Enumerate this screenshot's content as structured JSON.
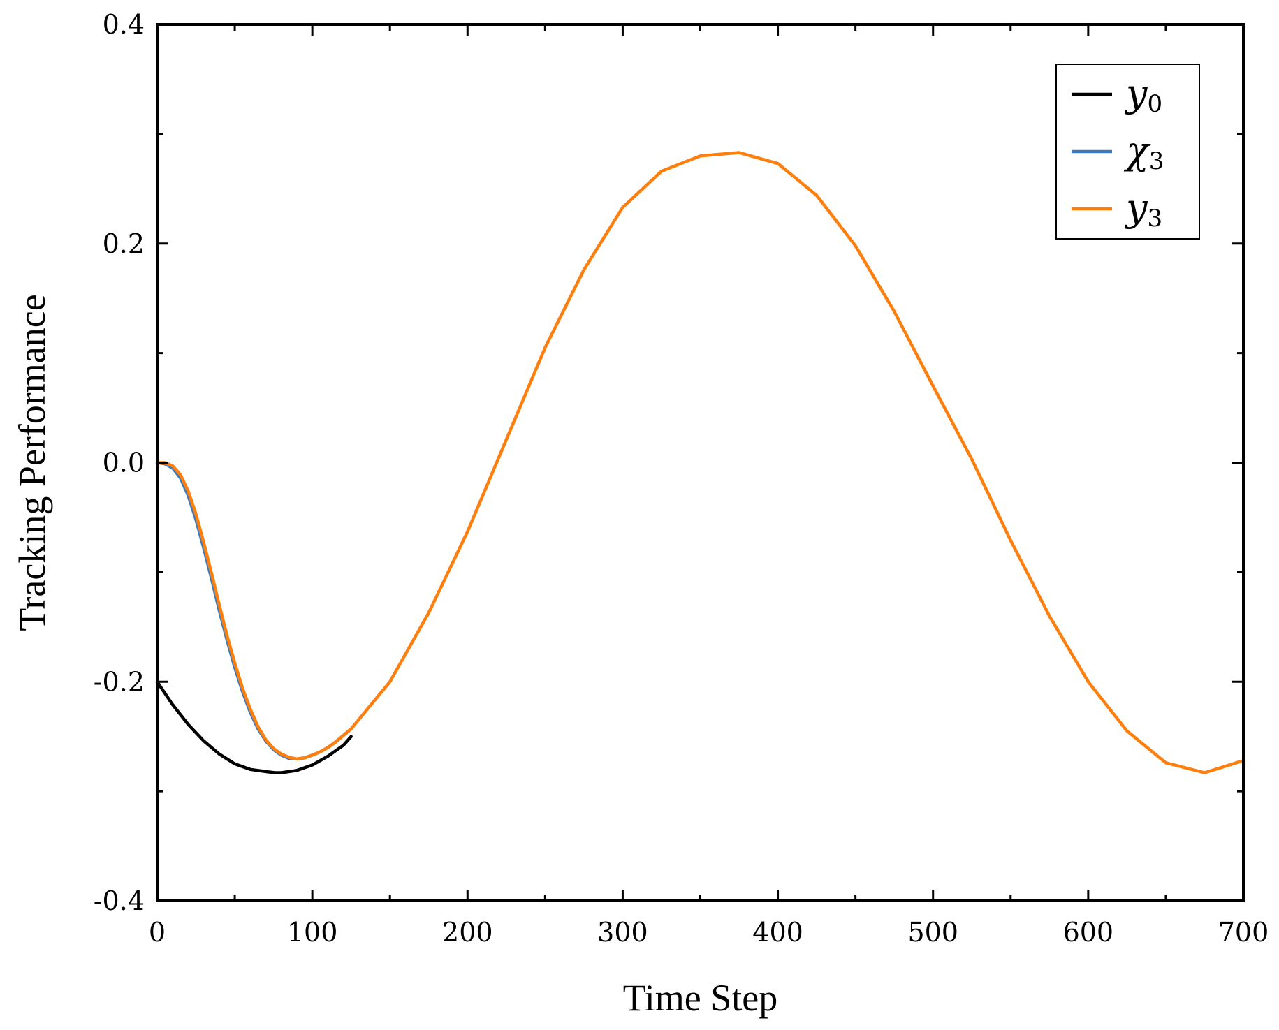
{
  "chart_data": {
    "type": "line",
    "title": "",
    "xlabel": "Time Step",
    "ylabel": "Tracking Performance",
    "xlim": [
      0,
      700
    ],
    "ylim": [
      -0.4,
      0.4
    ],
    "xticks": [
      0,
      100,
      200,
      300,
      400,
      500,
      600,
      700
    ],
    "xtick_labels": [
      "0",
      "100",
      "200",
      "300",
      "400",
      "500",
      "600",
      "700"
    ],
    "yticks": [
      -0.4,
      -0.2,
      0.0,
      0.2,
      0.4
    ],
    "ytick_labels": [
      "-0.4",
      "-0.2",
      "0.0",
      "0.2",
      "0.4"
    ],
    "grid": false,
    "legend": "top-right",
    "series": [
      {
        "name": "y0",
        "legend_main": "y",
        "legend_sub": "0",
        "color": "#000000",
        "x": [
          0,
          10,
          20,
          30,
          40,
          50,
          60,
          70,
          76,
          80,
          90,
          100,
          110,
          120,
          125
        ],
        "y": [
          -0.2,
          -0.221,
          -0.239,
          -0.254,
          -0.266,
          -0.275,
          -0.28,
          -0.282,
          -0.283,
          -0.283,
          -0.281,
          -0.276,
          -0.268,
          -0.258,
          -0.25
        ]
      },
      {
        "name": "χ3",
        "legend_main": "χ",
        "legend_sub": "3",
        "color": "#3a7bbf",
        "x": [
          0,
          5,
          10,
          15,
          20,
          25,
          30,
          35,
          40,
          45,
          50,
          55,
          60,
          65,
          70,
          75,
          80,
          85,
          90,
          95,
          100,
          105,
          110,
          115,
          120,
          125
        ],
        "y": [
          0.0,
          -0.001,
          -0.005,
          -0.014,
          -0.03,
          -0.052,
          -0.078,
          -0.106,
          -0.135,
          -0.162,
          -0.187,
          -0.209,
          -0.228,
          -0.243,
          -0.254,
          -0.262,
          -0.267,
          -0.27,
          -0.2705,
          -0.2695,
          -0.267,
          -0.264,
          -0.26,
          -0.255,
          -0.249,
          -0.243
        ]
      },
      {
        "name": "y3",
        "legend_main": "y",
        "legend_sub": "3",
        "color": "#ff7f0e",
        "x": [
          0,
          5,
          10,
          15,
          20,
          25,
          30,
          35,
          40,
          45,
          50,
          55,
          60,
          65,
          70,
          75,
          80,
          85,
          90,
          95,
          100,
          105,
          110,
          115,
          120,
          125,
          150,
          175,
          200,
          225,
          250,
          275,
          300,
          325,
          350,
          375,
          400,
          425,
          450,
          475,
          500,
          525,
          550,
          575,
          600,
          625,
          650,
          675,
          700
        ],
        "y": [
          0.0,
          0.0,
          -0.003,
          -0.011,
          -0.026,
          -0.047,
          -0.073,
          -0.101,
          -0.13,
          -0.158,
          -0.183,
          -0.206,
          -0.225,
          -0.241,
          -0.253,
          -0.261,
          -0.266,
          -0.269,
          -0.2705,
          -0.2695,
          -0.267,
          -0.264,
          -0.26,
          -0.255,
          -0.249,
          -0.243,
          -0.2,
          -0.137,
          -0.063,
          0.021,
          0.105,
          0.176,
          0.233,
          0.266,
          0.28,
          0.283,
          0.273,
          0.244,
          0.198,
          0.138,
          0.07,
          0.003,
          -0.071,
          -0.14,
          -0.2,
          -0.245,
          -0.274,
          -0.283,
          -0.272
        ]
      }
    ]
  }
}
